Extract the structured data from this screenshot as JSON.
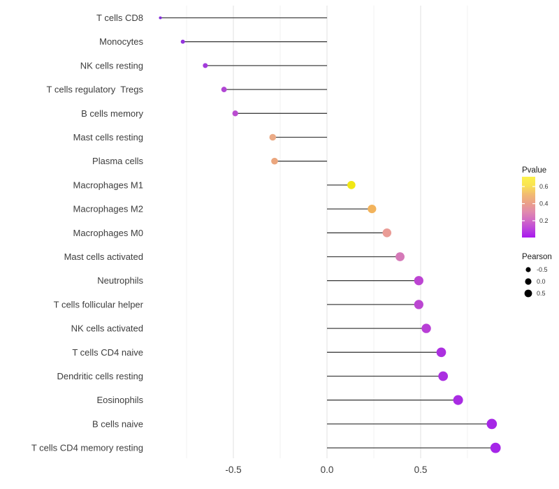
{
  "figure": {
    "background": "#ffffff"
  },
  "chart_data": {
    "type": "scatter",
    "variant": "horizontal-lollipop",
    "title": "",
    "xlabel": "",
    "ylabel": "",
    "x_ticks": [
      "-0.5",
      "0.0",
      "0.5"
    ],
    "x_tick_values": [
      -0.5,
      0.0,
      0.5
    ],
    "xlim": [
      -0.97,
      0.93
    ],
    "grid": "vertical-only",
    "major_gridlines": [
      -0.5,
      0.0,
      0.5
    ],
    "minor_gridlines": [
      -0.75,
      -0.25,
      0.25,
      0.75
    ],
    "baseline_x": 0.0,
    "points": [
      {
        "category": "T cells CD8",
        "pearson": -0.89,
        "color": "#8430DB"
      },
      {
        "category": "Monocytes",
        "pearson": -0.77,
        "color": "#9434DE"
      },
      {
        "category": "NK cells resting",
        "pearson": -0.65,
        "color": "#A33BDB"
      },
      {
        "category": "T cells regulatory  Tregs",
        "pearson": -0.55,
        "color": "#B146D4"
      },
      {
        "category": "B cells memory",
        "pearson": -0.49,
        "color": "#BA4CD0"
      },
      {
        "category": "Mast cells resting",
        "pearson": -0.29,
        "color": "#EBAB87"
      },
      {
        "category": "Plasma cells",
        "pearson": -0.28,
        "color": "#EBA67E"
      },
      {
        "category": "Macrophages M1",
        "pearson": 0.13,
        "color": "#F1E714"
      },
      {
        "category": "Macrophages M2",
        "pearson": 0.24,
        "color": "#F2B35C"
      },
      {
        "category": "Macrophages M0",
        "pearson": 0.32,
        "color": "#EA9C96"
      },
      {
        "category": "Mast cells activated",
        "pearson": 0.39,
        "color": "#D579B8"
      },
      {
        "category": "Neutrophils",
        "pearson": 0.49,
        "color": "#BC44D2"
      },
      {
        "category": "T cells follicular helper",
        "pearson": 0.49,
        "color": "#BB46D1"
      },
      {
        "category": "NK cells activated",
        "pearson": 0.53,
        "color": "#B83ED6"
      },
      {
        "category": "T cells CD4 naive",
        "pearson": 0.61,
        "color": "#AC30E0"
      },
      {
        "category": "Dendritic cells resting",
        "pearson": 0.62,
        "color": "#AB2FE1"
      },
      {
        "category": "Eosinophils",
        "pearson": 0.7,
        "color": "#A92CE3"
      },
      {
        "category": "B cells naive",
        "pearson": 0.88,
        "color": "#A627E6"
      },
      {
        "category": "T cells CD4 memory resting",
        "pearson": 0.9,
        "color": "#A526E8"
      }
    ],
    "legend": {
      "position": "right",
      "pvalue": {
        "title": "Pvalue",
        "tick_labels": [
          "0.6",
          "0.4",
          "0.2"
        ],
        "tick_values": [
          0.6,
          0.4,
          0.2
        ],
        "gradient_top_to_bottom": [
          "#FCF24B",
          "#F9E353",
          "#F2BC71",
          "#EBA188",
          "#E18BAC",
          "#D26BC4",
          "#BC44DC",
          "#A818EE"
        ]
      },
      "pearson": {
        "title": "Pearson",
        "entries": [
          {
            "label": "-0.5",
            "value": -0.5
          },
          {
            "label": "0.0",
            "value": 0.0
          },
          {
            "label": "0.5",
            "value": 0.5
          }
        ],
        "dot_color": "#000000"
      }
    },
    "style": {
      "segment_color": "#424242",
      "major_grid_color": "#e4e4e4",
      "minor_grid_color": "#f1f1f1",
      "axis_text_color": "#3d3d3d",
      "legend_text_color": "#333333",
      "legend_title_color": "#1a1a1a"
    }
  }
}
